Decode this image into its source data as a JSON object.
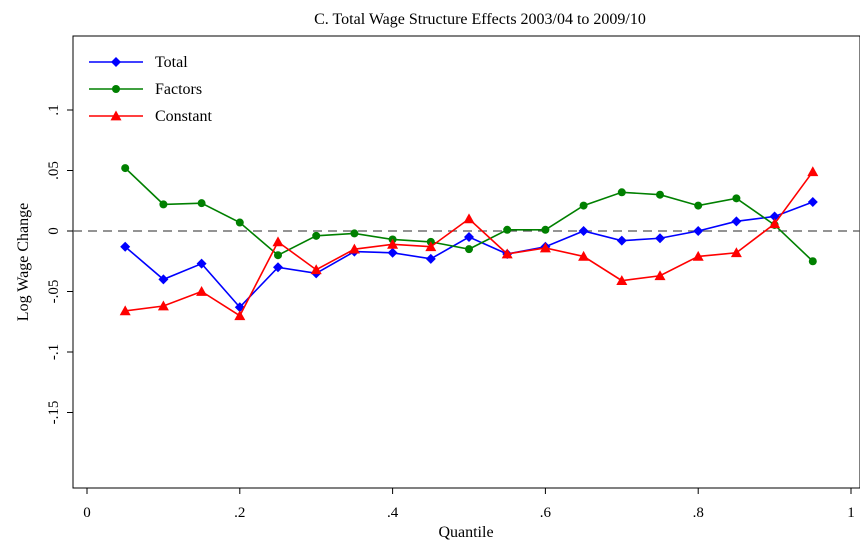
{
  "chart_data": {
    "type": "line",
    "title": "C. Total Wage Structure Effects 2003/04 to 2009/10",
    "xlabel": "Quantile",
    "ylabel": "Log Wage Change",
    "xlim": [
      0,
      1
    ],
    "ylim": [
      -0.215,
      0.16
    ],
    "x_ticks": [
      0,
      0.2,
      0.4,
      0.6,
      0.8,
      1
    ],
    "x_tick_labels": [
      "0",
      ".2",
      ".4",
      ".6",
      ".8",
      "1"
    ],
    "y_ticks": [
      0.1,
      0.05,
      0,
      -0.05,
      -0.1,
      -0.15
    ],
    "y_tick_labels": [
      ".1",
      ".05",
      "0",
      "-.05",
      "-.1",
      "-.15"
    ],
    "reference_line": {
      "y": 0,
      "style": "dashed",
      "color": "#555555"
    },
    "grid": false,
    "legend_position": "top-left",
    "x": [
      0.05,
      0.1,
      0.15,
      0.2,
      0.25,
      0.3,
      0.35,
      0.4,
      0.45,
      0.5,
      0.55,
      0.6,
      0.65,
      0.7,
      0.75,
      0.8,
      0.85,
      0.9,
      0.95
    ],
    "series": [
      {
        "name": "Total",
        "color": "#0000ff",
        "marker": "diamond",
        "values": [
          -0.013,
          -0.04,
          -0.027,
          -0.063,
          -0.03,
          -0.035,
          -0.017,
          -0.018,
          -0.023,
          -0.005,
          -0.019,
          -0.013,
          0.0,
          -0.008,
          -0.006,
          0.0,
          0.008,
          0.012,
          0.024
        ]
      },
      {
        "name": "Factors",
        "color": "#008000",
        "marker": "circle",
        "values": [
          0.052,
          0.022,
          0.023,
          0.007,
          -0.02,
          -0.004,
          -0.002,
          -0.007,
          -0.009,
          -0.015,
          0.001,
          0.001,
          0.021,
          0.032,
          0.03,
          0.021,
          0.027,
          0.005,
          -0.025
        ]
      },
      {
        "name": "Constant",
        "color": "#ff0000",
        "marker": "triangle",
        "values": [
          -0.066,
          -0.062,
          -0.05,
          -0.07,
          -0.009,
          -0.032,
          -0.015,
          -0.011,
          -0.013,
          0.01,
          -0.019,
          -0.014,
          -0.021,
          -0.041,
          -0.037,
          -0.021,
          -0.018,
          0.006,
          0.049
        ]
      }
    ]
  }
}
